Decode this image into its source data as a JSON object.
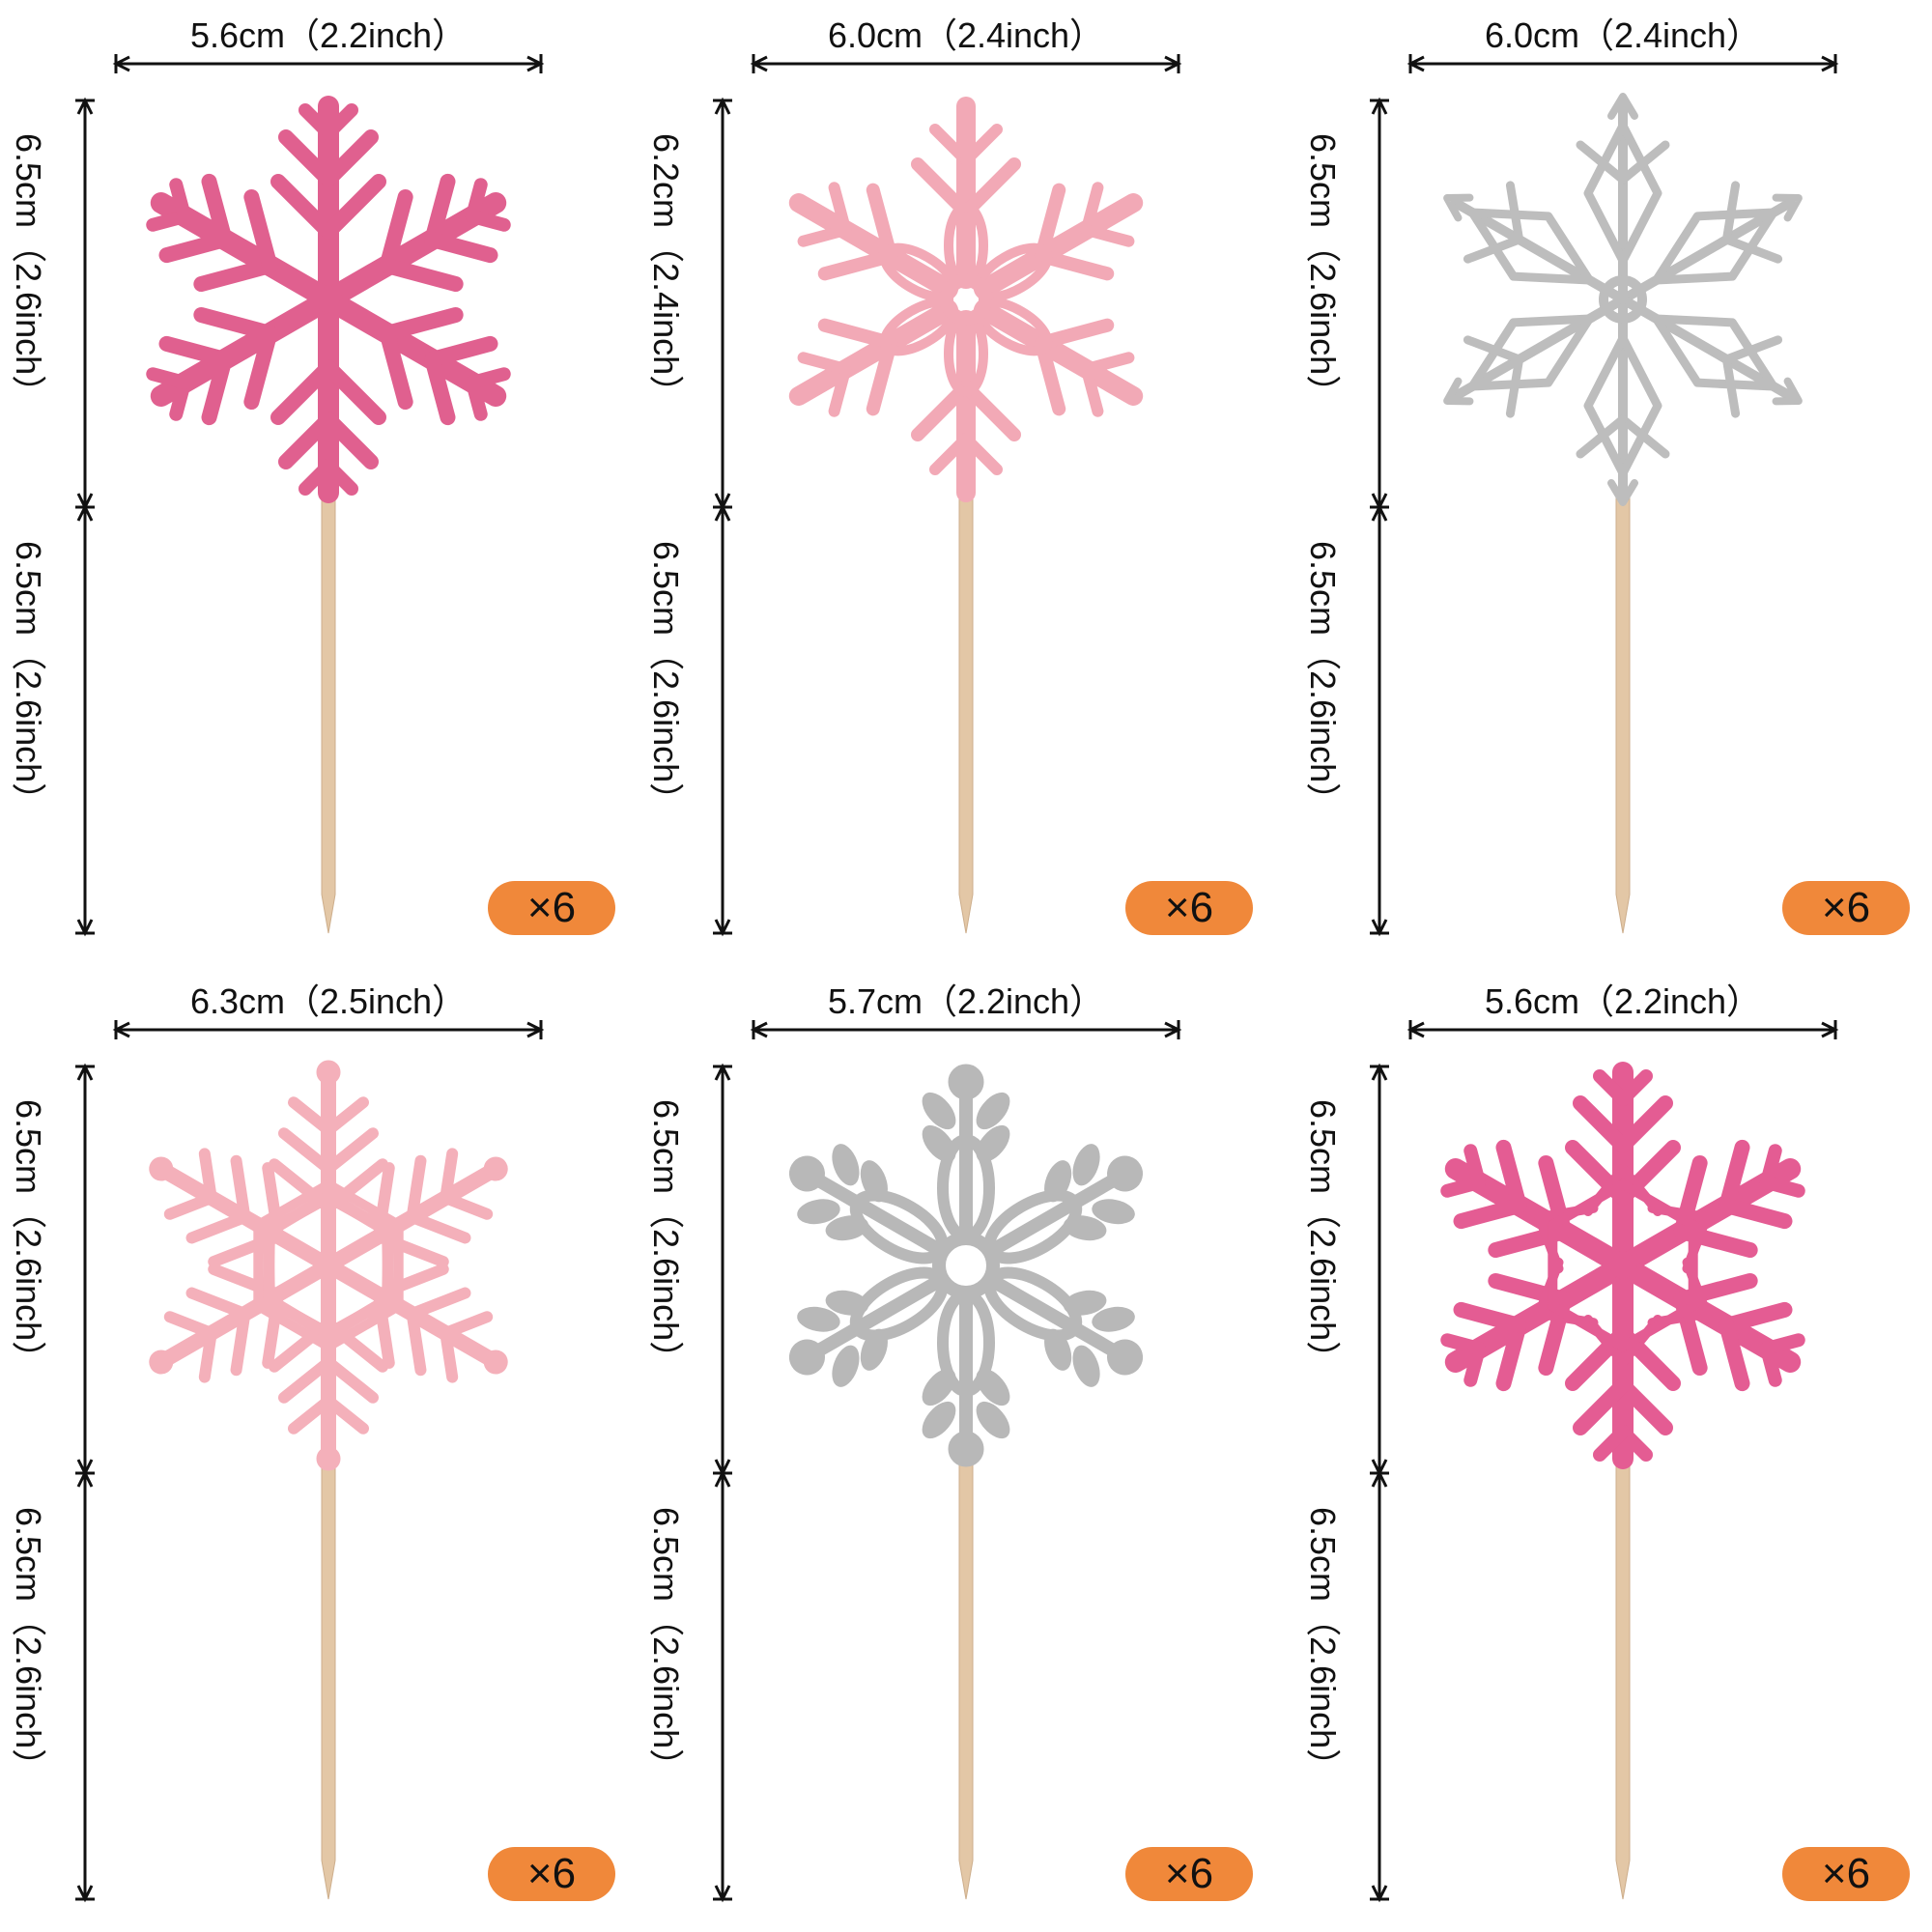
{
  "items": [
    {
      "width_label": "5.6cm（2.2inch）",
      "head_height_label": "6.5cm（2.6inch）",
      "stick_length_label": "6.5cm（2.6inch）",
      "quantity": "×6",
      "color": "#E0608F",
      "icon": "snowflake-icon"
    },
    {
      "width_label": "6.0cm（2.4inch）",
      "head_height_label": "6.2cm（2.4inch）",
      "stick_length_label": "6.5cm（2.6inch）",
      "quantity": "×6",
      "color": "#F2A9B6",
      "icon": "snowflake-icon"
    },
    {
      "width_label": "6.0cm（2.4inch）",
      "head_height_label": "6.5cm（2.6inch）",
      "stick_length_label": "6.5cm（2.6inch）",
      "quantity": "×6",
      "color": "#BDBDBD",
      "icon": "snowflake-icon"
    },
    {
      "width_label": "6.3cm（2.5inch）",
      "head_height_label": "6.5cm（2.6inch）",
      "stick_length_label": "6.5cm（2.6inch）",
      "quantity": "×6",
      "color": "#F4B0BA",
      "icon": "snowflake-icon"
    },
    {
      "width_label": "5.7cm（2.2inch）",
      "head_height_label": "6.5cm（2.6inch）",
      "stick_length_label": "6.5cm（2.6inch）",
      "quantity": "×6",
      "color": "#B8B8B8",
      "icon": "snowflake-icon"
    },
    {
      "width_label": "5.6cm（2.2inch）",
      "head_height_label": "6.5cm（2.6inch）",
      "stick_length_label": "6.5cm（2.6inch）",
      "quantity": "×6",
      "color": "#E45C93",
      "icon": "snowflake-icon"
    }
  ],
  "stick_color": "#E3C7A6"
}
